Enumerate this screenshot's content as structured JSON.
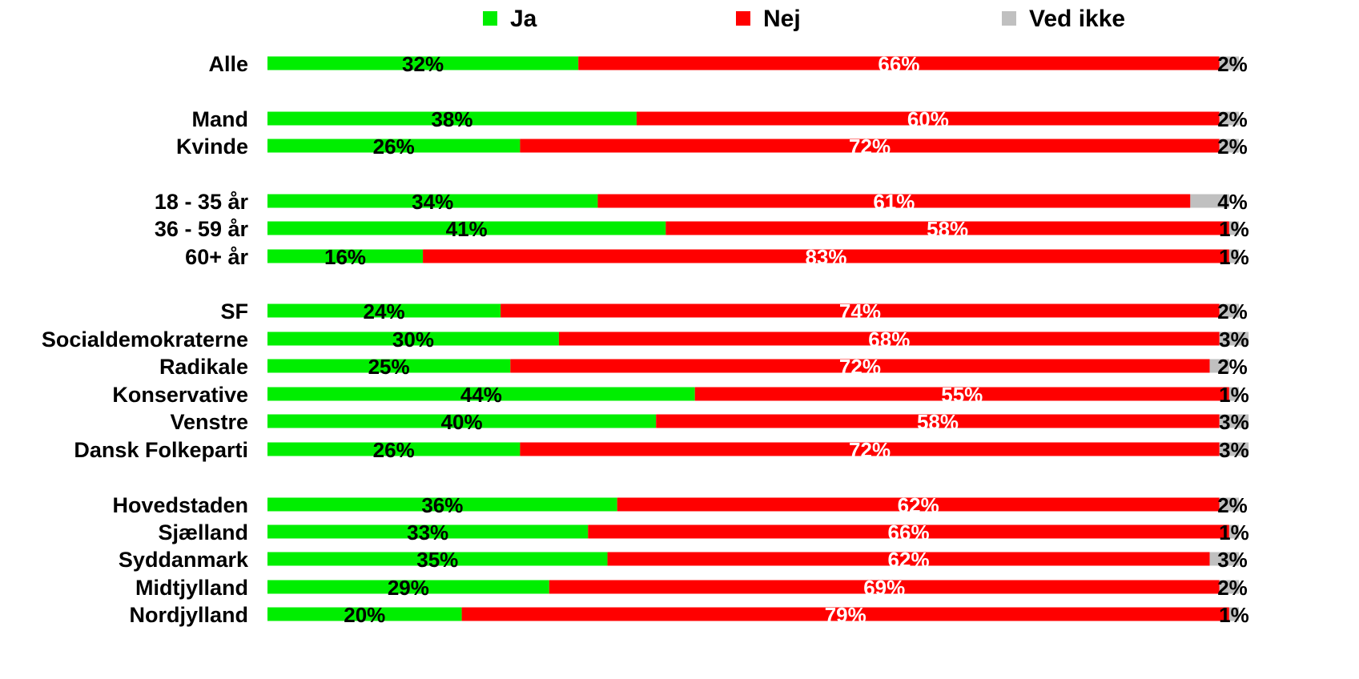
{
  "chart_data": {
    "type": "bar",
    "orientation": "horizontal",
    "stacked": true,
    "percent_stacked": true,
    "legend_position": "top",
    "grid": false,
    "xlim": [
      0,
      100
    ],
    "categories": [
      "Alle",
      "Mand",
      "Kvinde",
      "18 - 35 år",
      "36 - 59 år",
      "60+ år",
      "SF",
      "Socialdemokraterne",
      "Radikale",
      "Konservative",
      "Venstre",
      "Dansk Folkeparti",
      "Hovedstaden",
      "Sjælland",
      "Syddanmark",
      "Midtjylland",
      "Nordjylland"
    ],
    "series": [
      {
        "name": "Ja",
        "color": "#00ee00",
        "label_color": "#000000",
        "values": [
          32,
          38,
          26,
          34,
          41,
          16,
          24,
          30,
          25,
          44,
          40,
          26,
          36,
          33,
          35,
          29,
          20
        ]
      },
      {
        "name": "Nej",
        "color": "#ff0000",
        "label_color": "#ffffff",
        "values": [
          66,
          60,
          72,
          61,
          58,
          83,
          74,
          68,
          72,
          55,
          58,
          72,
          62,
          66,
          62,
          69,
          79
        ]
      },
      {
        "name": "Ved ikke",
        "color": "#c0c0c0",
        "label_color": "#000000",
        "values": [
          2,
          2,
          2,
          4,
          1,
          1,
          2,
          3,
          2,
          1,
          3,
          3,
          2,
          1,
          3,
          2,
          1
        ]
      }
    ],
    "value_labels": [
      [
        "32%",
        "66%",
        "2%"
      ],
      [
        "38%",
        "60%",
        "2%"
      ],
      [
        "26%",
        "72%",
        "2%"
      ],
      [
        "34%",
        "61%",
        "4%"
      ],
      [
        "41%",
        "58%",
        "1%"
      ],
      [
        "16%",
        "83%",
        "1%"
      ],
      [
        "24%",
        "74%",
        "2%"
      ],
      [
        "30%",
        "68%",
        "3%"
      ],
      [
        "25%",
        "72%",
        "2%"
      ],
      [
        "44%",
        "55%",
        "1%"
      ],
      [
        "40%",
        "58%",
        "3%"
      ],
      [
        "26%",
        "72%",
        "3%"
      ],
      [
        "36%",
        "62%",
        "2%"
      ],
      [
        "33%",
        "66%",
        "1%"
      ],
      [
        "35%",
        "62%",
        "3%"
      ],
      [
        "29%",
        "69%",
        "2%"
      ],
      [
        "20%",
        "79%",
        "1%"
      ]
    ]
  }
}
